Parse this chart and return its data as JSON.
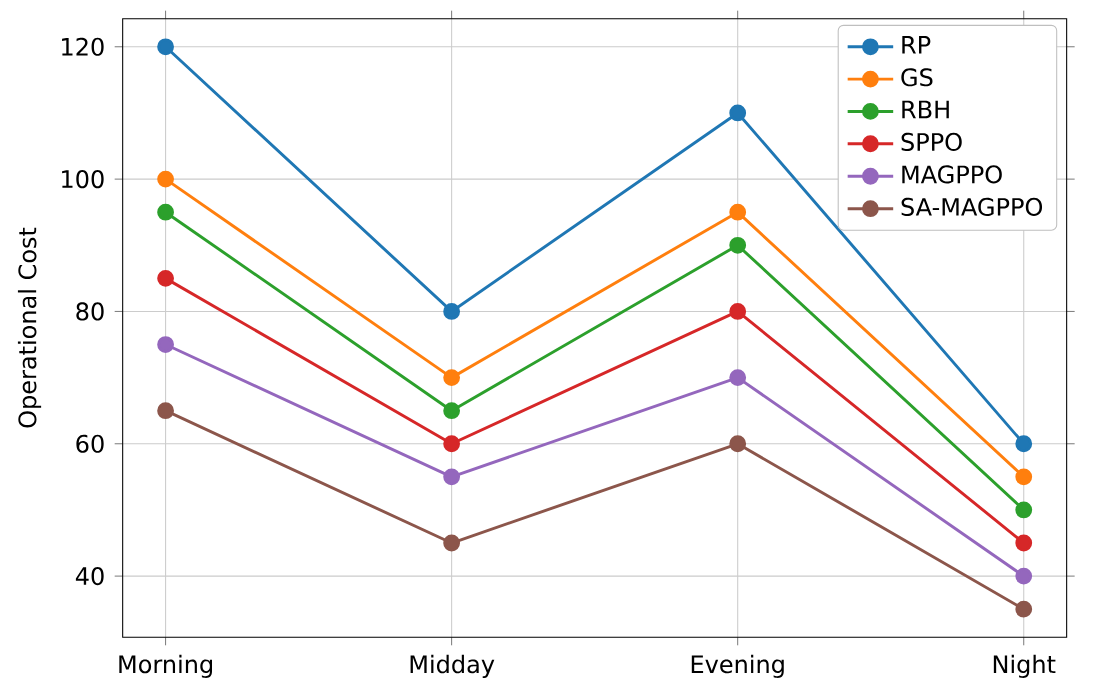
{
  "chart_data": {
    "type": "line",
    "ylabel": "Operational Cost",
    "categories": [
      "Morning",
      "Midday",
      "Evening",
      "Night"
    ],
    "series": [
      {
        "name": "RP",
        "color": "#1f77b4",
        "values": [
          120,
          80,
          110,
          60
        ]
      },
      {
        "name": "GS",
        "color": "#ff7f0e",
        "values": [
          100,
          70,
          95,
          55
        ]
      },
      {
        "name": "RBH",
        "color": "#2ca02c",
        "values": [
          95,
          65,
          90,
          50
        ]
      },
      {
        "name": "SPPO",
        "color": "#d62728",
        "values": [
          85,
          60,
          80,
          45
        ]
      },
      {
        "name": "MAGPPO",
        "color": "#9467bd",
        "values": [
          75,
          55,
          70,
          40
        ]
      },
      {
        "name": "SA-MAGPPO",
        "color": "#8c564b",
        "values": [
          65,
          45,
          60,
          35
        ]
      }
    ],
    "ylim": [
      30.75,
      124.25
    ],
    "yticks": [
      40,
      60,
      80,
      100,
      120
    ],
    "grid": true,
    "legend": "top right",
    "marker": "circle",
    "line_style": "solid"
  }
}
